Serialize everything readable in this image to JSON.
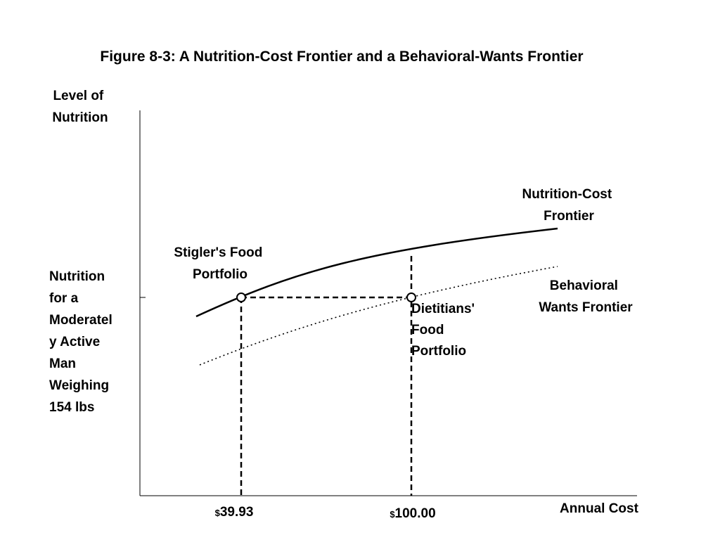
{
  "figure": {
    "title": "Figure 8-3: A Nutrition-Cost Frontier and a Behavioral-Wants Frontier"
  },
  "axes": {
    "y_label": [
      "Level of",
      "Nutrition"
    ],
    "x_label": "Annual Cost",
    "y_marker_label": [
      "Nutrition",
      "for a",
      "Moderatel",
      "y Active",
      "Man",
      "Weighing",
      "154 lbs"
    ],
    "x_ticks": [
      {
        "currency": "$",
        "value": "39.93"
      },
      {
        "currency": "$",
        "value": "100.00"
      }
    ]
  },
  "curves": {
    "nutrition_cost": {
      "label": [
        "Nutrition-Cost",
        "Frontier"
      ],
      "style": "solid"
    },
    "behavioral_wants": {
      "label": [
        "Behavioral",
        "Wants Frontier"
      ],
      "style": "dotted"
    }
  },
  "points": {
    "stigler": {
      "label": [
        "Stigler's Food",
        "Portfolio"
      ],
      "cost": 39.93
    },
    "dietitians": {
      "label": [
        "Dietitians'",
        "Food",
        "Portfolio"
      ],
      "cost": 100.0
    }
  },
  "colors": {
    "ink": "#000000",
    "background": "#ffffff"
  }
}
